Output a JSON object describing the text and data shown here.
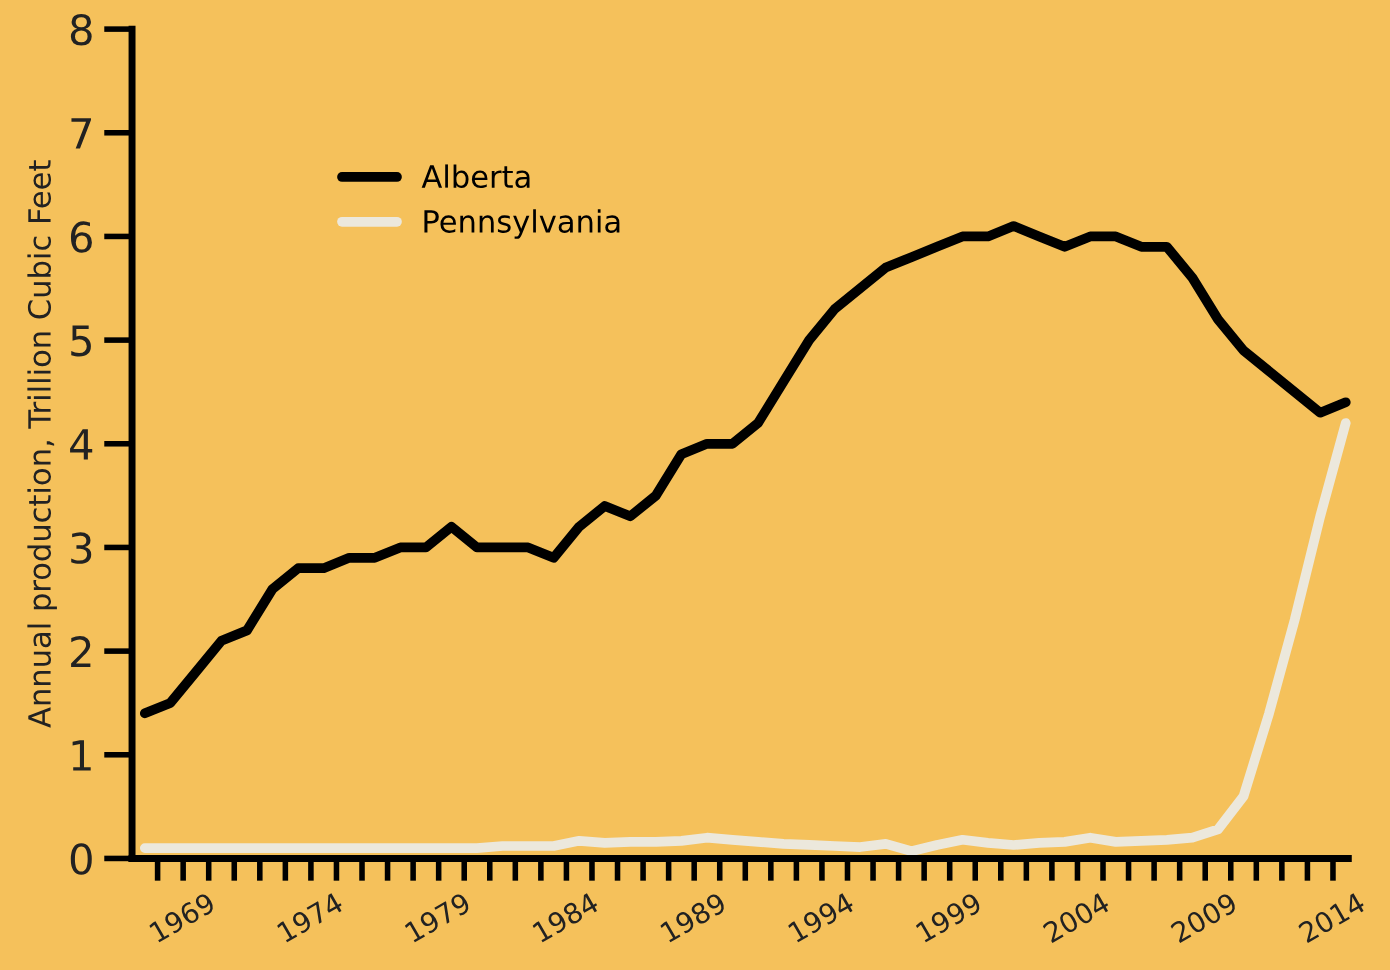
{
  "chart_data": {
    "type": "line",
    "ylabel": "Annual production, Trillion Cubic Feet",
    "x": [
      1967.5,
      1968.5,
      1969.5,
      1970.5,
      1971.5,
      1972.5,
      1973.5,
      1974.5,
      1975.5,
      1976.5,
      1977.5,
      1978.5,
      1979.5,
      1980.5,
      1981.5,
      1982.5,
      1983.5,
      1984.5,
      1985.5,
      1986.5,
      1987.5,
      1988.5,
      1989.5,
      1990.5,
      1991.5,
      1992.5,
      1993.5,
      1994.5,
      1995.5,
      1996.5,
      1997.5,
      1998.5,
      1999.5,
      2000.5,
      2001.5,
      2002.5,
      2003.5,
      2004.5,
      2005.5,
      2006.5,
      2007.5,
      2008.5,
      2009.5,
      2010.5,
      2011.5,
      2012.5,
      2013.5,
      2014.5
    ],
    "series": [
      {
        "name": "Alberta",
        "color": "#000000",
        "values": [
          1.4,
          1.5,
          1.8,
          2.1,
          2.2,
          2.6,
          2.8,
          2.8,
          2.9,
          2.9,
          3.0,
          3.0,
          3.2,
          3.0,
          3.0,
          3.0,
          2.9,
          3.2,
          3.4,
          3.3,
          3.5,
          3.9,
          4.0,
          4.0,
          4.2,
          4.6,
          5.0,
          5.3,
          5.5,
          5.7,
          5.8,
          5.9,
          6.0,
          6.0,
          6.1,
          6.0,
          5.9,
          6.0,
          6.0,
          5.9,
          5.9,
          5.6,
          5.2,
          4.9,
          4.7,
          4.5,
          4.3,
          4.4
        ]
      },
      {
        "name": "Pennsylvania",
        "color": "#ece8dc",
        "values": [
          0.1,
          0.1,
          0.1,
          0.1,
          0.1,
          0.1,
          0.1,
          0.1,
          0.1,
          0.1,
          0.1,
          0.1,
          0.1,
          0.1,
          0.12,
          0.12,
          0.12,
          0.17,
          0.15,
          0.16,
          0.16,
          0.17,
          0.2,
          0.18,
          0.16,
          0.14,
          0.13,
          0.12,
          0.11,
          0.14,
          0.07,
          0.13,
          0.18,
          0.15,
          0.13,
          0.15,
          0.16,
          0.2,
          0.16,
          0.17,
          0.18,
          0.2,
          0.28,
          0.6,
          1.4,
          2.3,
          3.3,
          4.2
        ]
      }
    ],
    "xlim": [
      1967,
      2014.6
    ],
    "ylim": [
      0,
      8
    ],
    "yticks": [
      0,
      1,
      2,
      3,
      4,
      5,
      6,
      7,
      8
    ],
    "xticks": [
      {
        "value": 1968,
        "label": null
      },
      1969,
      {
        "value": 1970,
        "label": null
      },
      {
        "value": 1971,
        "label": null
      },
      {
        "value": 1972,
        "label": null
      },
      {
        "value": 1973,
        "label": null
      },
      1974,
      {
        "value": 1975,
        "label": null
      },
      {
        "value": 1976,
        "label": null
      },
      {
        "value": 1977,
        "label": null
      },
      {
        "value": 1978,
        "label": null
      },
      1979,
      {
        "value": 1980,
        "label": null
      },
      {
        "value": 1981,
        "label": null
      },
      {
        "value": 1982,
        "label": null
      },
      {
        "value": 1983,
        "label": null
      },
      1984,
      {
        "value": 1985,
        "label": null
      },
      {
        "value": 1986,
        "label": null
      },
      {
        "value": 1987,
        "label": null
      },
      {
        "value": 1988,
        "label": null
      },
      1989,
      {
        "value": 1990,
        "label": null
      },
      {
        "value": 1991,
        "label": null
      },
      {
        "value": 1992,
        "label": null
      },
      {
        "value": 1993,
        "label": null
      },
      1994,
      {
        "value": 1995,
        "label": null
      },
      {
        "value": 1996,
        "label": null
      },
      {
        "value": 1997,
        "label": null
      },
      {
        "value": 1998,
        "label": null
      },
      1999,
      {
        "value": 2000,
        "label": null
      },
      {
        "value": 2001,
        "label": null
      },
      {
        "value": 2002,
        "label": null
      },
      {
        "value": 2003,
        "label": null
      },
      2004,
      {
        "value": 2005,
        "label": null
      },
      {
        "value": 2006,
        "label": null
      },
      {
        "value": 2007,
        "label": null
      },
      {
        "value": 2008,
        "label": null
      },
      2009,
      {
        "value": 2010,
        "label": null
      },
      {
        "value": 2011,
        "label": null
      },
      {
        "value": 2012,
        "label": null
      },
      {
        "value": 2013,
        "label": null
      },
      2014
    ],
    "grid": false,
    "legend": "top left",
    "marker": "none",
    "line_style": "solid"
  }
}
